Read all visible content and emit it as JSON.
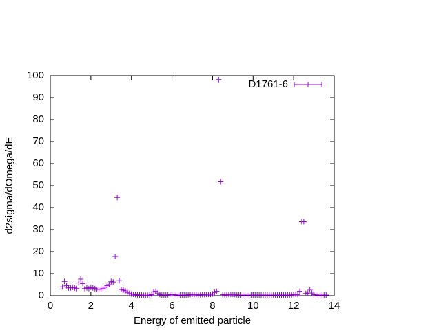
{
  "chart_data": {
    "type": "scatter",
    "xlabel": "Energy of emitted particle",
    "ylabel": "d2sigma/dOmega/dE",
    "xlim": [
      0,
      14
    ],
    "xticks": [
      0,
      2,
      4,
      6,
      8,
      10,
      12,
      14
    ],
    "ylim": [
      0,
      100
    ],
    "yticks": [
      0,
      10,
      20,
      30,
      40,
      50,
      60,
      70,
      80,
      90,
      100
    ],
    "legend": "top-right",
    "series": [
      {
        "name": "D1761-6",
        "color": "#9400d3",
        "x": [
          0.6,
          0.7,
          0.8,
          0.9,
          1.0,
          1.1,
          1.2,
          1.3,
          1.4,
          1.5,
          1.6,
          1.7,
          1.8,
          1.9,
          2.0,
          2.1,
          2.2,
          2.3,
          2.4,
          2.5,
          2.6,
          2.7,
          2.8,
          2.9,
          3.0,
          3.1,
          3.2,
          3.3,
          3.4,
          3.5,
          3.6,
          3.7,
          3.8,
          3.9,
          4.0,
          4.1,
          4.2,
          4.3,
          4.4,
          4.5,
          4.6,
          4.7,
          4.8,
          4.9,
          5.0,
          5.1,
          5.2,
          5.3,
          5.4,
          5.5,
          5.6,
          5.7,
          5.8,
          5.9,
          6.0,
          6.1,
          6.2,
          6.3,
          6.4,
          6.5,
          6.6,
          6.7,
          6.8,
          6.9,
          7.0,
          7.1,
          7.2,
          7.3,
          7.4,
          7.5,
          7.6,
          7.7,
          7.8,
          7.9,
          8.0,
          8.1,
          8.2,
          8.3,
          8.4,
          8.5,
          8.6,
          8.7,
          8.8,
          8.9,
          9.0,
          9.1,
          9.2,
          9.3,
          9.4,
          9.5,
          9.6,
          9.7,
          9.8,
          9.9,
          10.0,
          10.1,
          10.2,
          10.3,
          10.4,
          10.5,
          10.6,
          10.7,
          10.8,
          10.9,
          11.0,
          11.1,
          11.2,
          11.3,
          11.4,
          11.5,
          11.6,
          11.7,
          11.8,
          11.9,
          12.0,
          12.1,
          12.2,
          12.3,
          12.4,
          12.5,
          12.6,
          12.7,
          12.8,
          12.9,
          13.0,
          13.1,
          13.2,
          13.3,
          13.4,
          13.5,
          13.6
        ],
        "values": [
          4,
          6.5,
          4.5,
          3.5,
          3.5,
          3.8,
          3.5,
          3.2,
          5.8,
          7.5,
          5.5,
          3.2,
          3.5,
          3.2,
          3.8,
          3.5,
          3.2,
          2.8,
          2.8,
          3,
          3.2,
          3.8,
          4.5,
          5,
          6.5,
          6.2,
          17.8,
          44.6,
          6.8,
          2.8,
          2.5,
          2.2,
          1.5,
          1,
          0.8,
          0.6,
          0.5,
          0.4,
          0.3,
          0.3,
          0.2,
          0.2,
          0.2,
          0.3,
          0.5,
          1.8,
          2,
          1.2,
          0.5,
          0.3,
          0.3,
          0.3,
          0.4,
          0.5,
          0.6,
          0.5,
          0.4,
          0.3,
          0.3,
          0.3,
          0.3,
          0.3,
          0.4,
          0.5,
          0.6,
          0.5,
          0.5,
          0.4,
          0.4,
          0.5,
          0.5,
          0.6,
          0.6,
          0.6,
          0.8,
          1.5,
          2,
          98.2,
          51.7,
          0.5,
          0.4,
          0.4,
          0.5,
          0.6,
          0.6,
          0.5,
          0.4,
          0.3,
          0.3,
          0.3,
          0.3,
          0.3,
          0.3,
          0.3,
          0.3,
          0.3,
          0.3,
          0.3,
          0.3,
          0.3,
          0.3,
          0.3,
          0.3,
          0.3,
          0.3,
          0.3,
          0.3,
          0.3,
          0.3,
          0.3,
          0.3,
          0.3,
          0.3,
          0.4,
          0.5,
          0.6,
          0.5,
          2,
          33.6,
          33.6,
          1,
          1.2,
          2.8,
          1.2,
          0.5,
          0.4,
          0.3,
          0.3,
          0.3,
          0.3,
          0.3
        ]
      }
    ]
  }
}
